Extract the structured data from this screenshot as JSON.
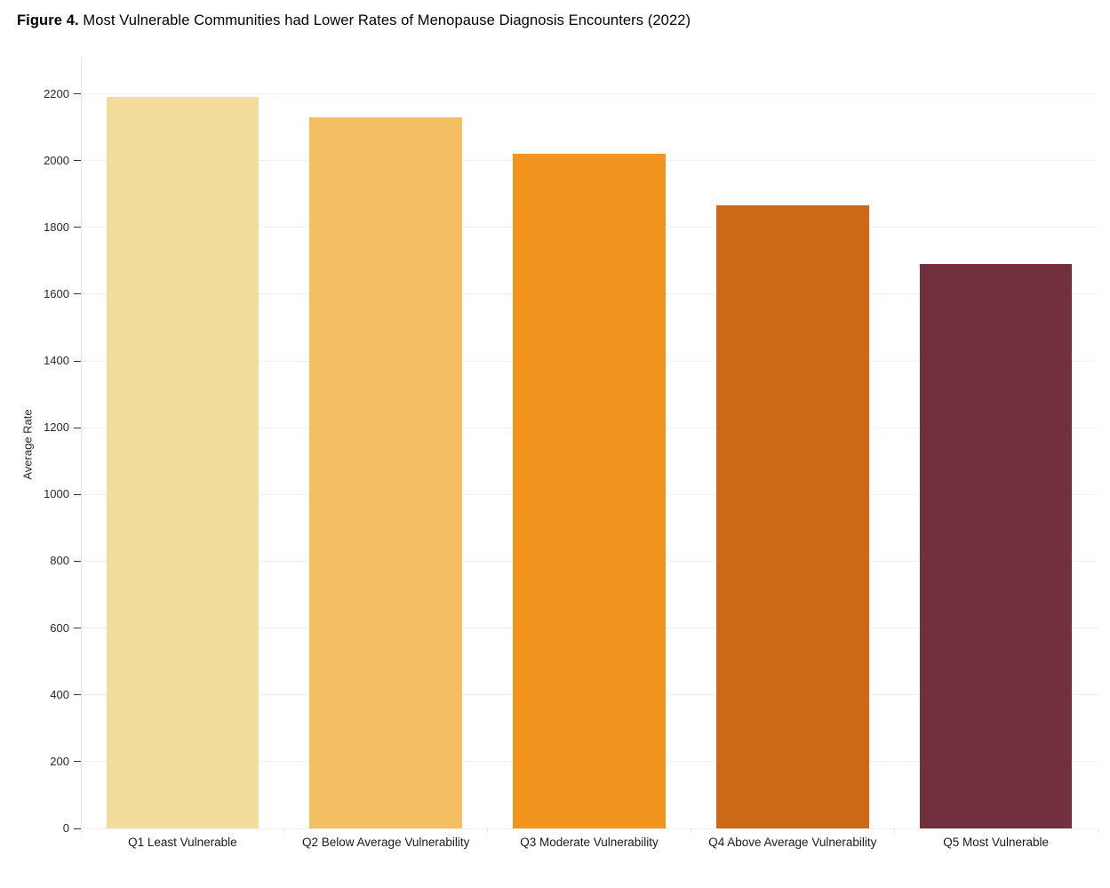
{
  "figure": {
    "title_prefix": "Figure 4.",
    "title_rest": " Most Vulnerable Communities had Lower Rates of Menopause Diagnosis Encounters (2022)"
  },
  "chart_data": {
    "type": "bar",
    "title": "Figure 4. Most Vulnerable Communities had Lower Rates of Menopause Diagnosis Encounters (2022)",
    "categories": [
      "Q1 Least Vulnerable",
      "Q2 Below Average Vulnerability",
      "Q3 Moderate Vulnerability",
      "Q4 Above Average Vulnerability",
      "Q5 Most Vulnerable"
    ],
    "values": [
      2190,
      2130,
      2020,
      1865,
      1690
    ],
    "bar_colors": [
      "#f2de9a",
      "#f4bf62",
      "#f3941e",
      "#cc6816",
      "#722f3e"
    ],
    "xlabel": "",
    "ylabel": "Average Rate",
    "ylim": [
      0,
      2300
    ],
    "yticks": [
      0,
      200,
      400,
      600,
      800,
      1000,
      1200,
      1400,
      1600,
      1800,
      2000,
      2200
    ],
    "grid": "horizontal gridlines on, vertical off",
    "legend": "none",
    "colors": {
      "gridline": "#f0f0f0",
      "axis_line": "#e6e6e6",
      "tick_mark": "#333333",
      "boundary_tick": "#e2e2e2",
      "tick_text": "#2a2a2a",
      "label_text": "#1a1a1a"
    }
  }
}
